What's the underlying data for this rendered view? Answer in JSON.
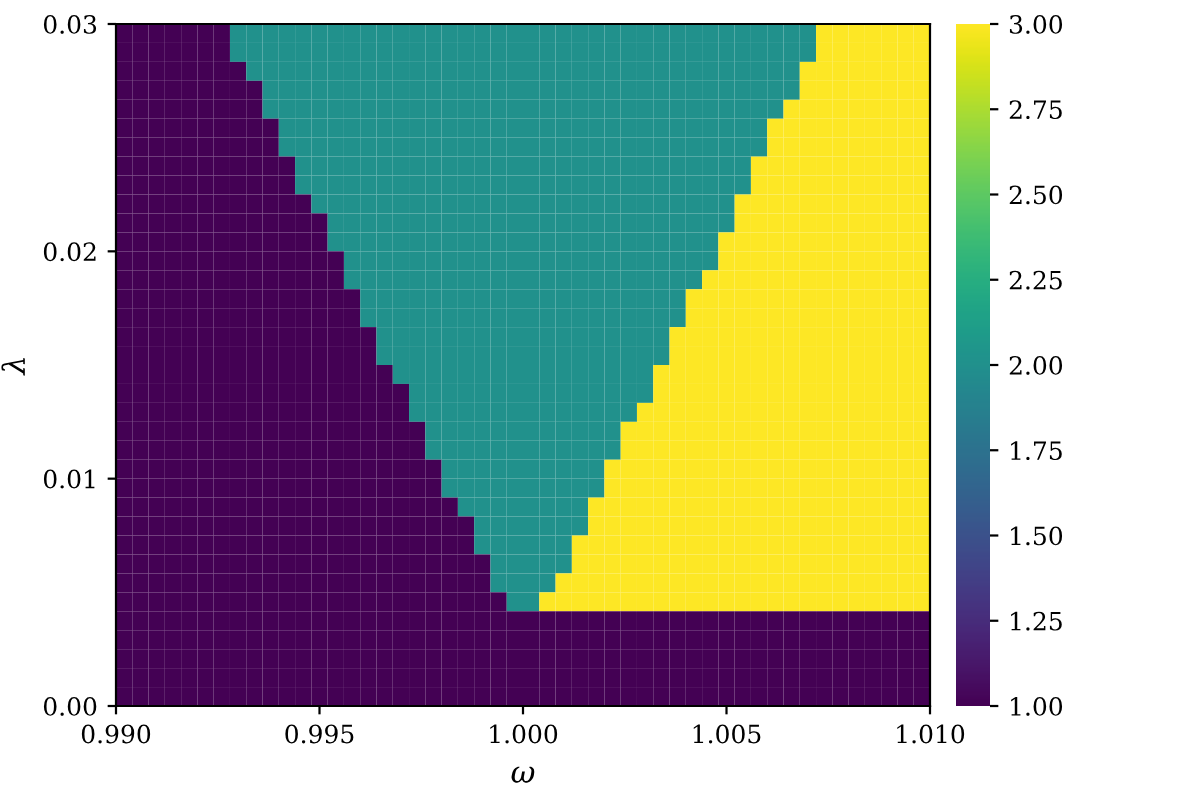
{
  "chart_data": {
    "type": "heatmap",
    "xlabel": "ω",
    "ylabel": "λ",
    "xlim": [
      0.99,
      1.01
    ],
    "ylim": [
      0.0,
      0.03
    ],
    "xticks": [
      {
        "value": 0.99,
        "label": "0.990"
      },
      {
        "value": 0.995,
        "label": "0.995"
      },
      {
        "value": 1.0,
        "label": "1.000"
      },
      {
        "value": 1.005,
        "label": "1.005"
      },
      {
        "value": 1.01,
        "label": "1.010"
      }
    ],
    "yticks": [
      {
        "value": 0.0,
        "label": "0.00"
      },
      {
        "value": 0.01,
        "label": "0.01"
      },
      {
        "value": 0.02,
        "label": "0.02"
      },
      {
        "value": 0.03,
        "label": "0.03"
      }
    ],
    "clim": [
      1,
      3
    ],
    "cticks": [
      {
        "value": 1,
        "label": "1.00"
      },
      {
        "value": 1.25,
        "label": "1.25"
      },
      {
        "value": 1.5,
        "label": "1.50"
      },
      {
        "value": 1.75,
        "label": "1.75"
      },
      {
        "value": 2,
        "label": "2.00"
      },
      {
        "value": 2.25,
        "label": "2.25"
      },
      {
        "value": 2.5,
        "label": "2.50"
      },
      {
        "value": 2.75,
        "label": "2.75"
      },
      {
        "value": 3,
        "label": "3.00"
      }
    ],
    "grid": false,
    "cells": [
      [
        1,
        1,
        1,
        1,
        1,
        1,
        1,
        2,
        2,
        2,
        2,
        2,
        2,
        2,
        2,
        2,
        2,
        2,
        2,
        2,
        2,
        2,
        2,
        2,
        2,
        2,
        2,
        2,
        2,
        2,
        2,
        2,
        2,
        2,
        2,
        2,
        2,
        2,
        2,
        2,
        2,
        2,
        2,
        3,
        3,
        3,
        3,
        3,
        3,
        3
      ],
      [
        1,
        1,
        1,
        1,
        1,
        1,
        1,
        2,
        2,
        2,
        2,
        2,
        2,
        2,
        2,
        2,
        2,
        2,
        2,
        2,
        2,
        2,
        2,
        2,
        2,
        2,
        2,
        2,
        2,
        2,
        2,
        2,
        2,
        2,
        2,
        2,
        2,
        2,
        2,
        2,
        2,
        2,
        2,
        3,
        3,
        3,
        3,
        3,
        3,
        3
      ],
      [
        1,
        1,
        1,
        1,
        1,
        1,
        1,
        1,
        2,
        2,
        2,
        2,
        2,
        2,
        2,
        2,
        2,
        2,
        2,
        2,
        2,
        2,
        2,
        2,
        2,
        2,
        2,
        2,
        2,
        2,
        2,
        2,
        2,
        2,
        2,
        2,
        2,
        2,
        2,
        2,
        2,
        2,
        3,
        3,
        3,
        3,
        3,
        3,
        3,
        3
      ],
      [
        1,
        1,
        1,
        1,
        1,
        1,
        1,
        1,
        1,
        2,
        2,
        2,
        2,
        2,
        2,
        2,
        2,
        2,
        2,
        2,
        2,
        2,
        2,
        2,
        2,
        2,
        2,
        2,
        2,
        2,
        2,
        2,
        2,
        2,
        2,
        2,
        2,
        2,
        2,
        2,
        2,
        2,
        3,
        3,
        3,
        3,
        3,
        3,
        3,
        3
      ],
      [
        1,
        1,
        1,
        1,
        1,
        1,
        1,
        1,
        1,
        2,
        2,
        2,
        2,
        2,
        2,
        2,
        2,
        2,
        2,
        2,
        2,
        2,
        2,
        2,
        2,
        2,
        2,
        2,
        2,
        2,
        2,
        2,
        2,
        2,
        2,
        2,
        2,
        2,
        2,
        2,
        2,
        3,
        3,
        3,
        3,
        3,
        3,
        3,
        3,
        3
      ],
      [
        1,
        1,
        1,
        1,
        1,
        1,
        1,
        1,
        1,
        1,
        2,
        2,
        2,
        2,
        2,
        2,
        2,
        2,
        2,
        2,
        2,
        2,
        2,
        2,
        2,
        2,
        2,
        2,
        2,
        2,
        2,
        2,
        2,
        2,
        2,
        2,
        2,
        2,
        2,
        2,
        3,
        3,
        3,
        3,
        3,
        3,
        3,
        3,
        3,
        3
      ],
      [
        1,
        1,
        1,
        1,
        1,
        1,
        1,
        1,
        1,
        1,
        2,
        2,
        2,
        2,
        2,
        2,
        2,
        2,
        2,
        2,
        2,
        2,
        2,
        2,
        2,
        2,
        2,
        2,
        2,
        2,
        2,
        2,
        2,
        2,
        2,
        2,
        2,
        2,
        2,
        2,
        3,
        3,
        3,
        3,
        3,
        3,
        3,
        3,
        3,
        3
      ],
      [
        1,
        1,
        1,
        1,
        1,
        1,
        1,
        1,
        1,
        1,
        1,
        2,
        2,
        2,
        2,
        2,
        2,
        2,
        2,
        2,
        2,
        2,
        2,
        2,
        2,
        2,
        2,
        2,
        2,
        2,
        2,
        2,
        2,
        2,
        2,
        2,
        2,
        2,
        2,
        3,
        3,
        3,
        3,
        3,
        3,
        3,
        3,
        3,
        3,
        3
      ],
      [
        1,
        1,
        1,
        1,
        1,
        1,
        1,
        1,
        1,
        1,
        1,
        2,
        2,
        2,
        2,
        2,
        2,
        2,
        2,
        2,
        2,
        2,
        2,
        2,
        2,
        2,
        2,
        2,
        2,
        2,
        2,
        2,
        2,
        2,
        2,
        2,
        2,
        2,
        2,
        3,
        3,
        3,
        3,
        3,
        3,
        3,
        3,
        3,
        3,
        3
      ],
      [
        1,
        1,
        1,
        1,
        1,
        1,
        1,
        1,
        1,
        1,
        1,
        1,
        2,
        2,
        2,
        2,
        2,
        2,
        2,
        2,
        2,
        2,
        2,
        2,
        2,
        2,
        2,
        2,
        2,
        2,
        2,
        2,
        2,
        2,
        2,
        2,
        2,
        2,
        3,
        3,
        3,
        3,
        3,
        3,
        3,
        3,
        3,
        3,
        3,
        3
      ],
      [
        1,
        1,
        1,
        1,
        1,
        1,
        1,
        1,
        1,
        1,
        1,
        1,
        1,
        2,
        2,
        2,
        2,
        2,
        2,
        2,
        2,
        2,
        2,
        2,
        2,
        2,
        2,
        2,
        2,
        2,
        2,
        2,
        2,
        2,
        2,
        2,
        2,
        2,
        3,
        3,
        3,
        3,
        3,
        3,
        3,
        3,
        3,
        3,
        3,
        3
      ],
      [
        1,
        1,
        1,
        1,
        1,
        1,
        1,
        1,
        1,
        1,
        1,
        1,
        1,
        2,
        2,
        2,
        2,
        2,
        2,
        2,
        2,
        2,
        2,
        2,
        2,
        2,
        2,
        2,
        2,
        2,
        2,
        2,
        2,
        2,
        2,
        2,
        2,
        3,
        3,
        3,
        3,
        3,
        3,
        3,
        3,
        3,
        3,
        3,
        3,
        3
      ],
      [
        1,
        1,
        1,
        1,
        1,
        1,
        1,
        1,
        1,
        1,
        1,
        1,
        1,
        1,
        2,
        2,
        2,
        2,
        2,
        2,
        2,
        2,
        2,
        2,
        2,
        2,
        2,
        2,
        2,
        2,
        2,
        2,
        2,
        2,
        2,
        2,
        2,
        3,
        3,
        3,
        3,
        3,
        3,
        3,
        3,
        3,
        3,
        3,
        3,
        3
      ],
      [
        1,
        1,
        1,
        1,
        1,
        1,
        1,
        1,
        1,
        1,
        1,
        1,
        1,
        1,
        2,
        2,
        2,
        2,
        2,
        2,
        2,
        2,
        2,
        2,
        2,
        2,
        2,
        2,
        2,
        2,
        2,
        2,
        2,
        2,
        2,
        2,
        3,
        3,
        3,
        3,
        3,
        3,
        3,
        3,
        3,
        3,
        3,
        3,
        3,
        3
      ],
      [
        1,
        1,
        1,
        1,
        1,
        1,
        1,
        1,
        1,
        1,
        1,
        1,
        1,
        1,
        1,
        2,
        2,
        2,
        2,
        2,
        2,
        2,
        2,
        2,
        2,
        2,
        2,
        2,
        2,
        2,
        2,
        2,
        2,
        2,
        2,
        3,
        3,
        3,
        3,
        3,
        3,
        3,
        3,
        3,
        3,
        3,
        3,
        3,
        3,
        3
      ],
      [
        1,
        1,
        1,
        1,
        1,
        1,
        1,
        1,
        1,
        1,
        1,
        1,
        1,
        1,
        1,
        2,
        2,
        2,
        2,
        2,
        2,
        2,
        2,
        2,
        2,
        2,
        2,
        2,
        2,
        2,
        2,
        2,
        2,
        2,
        2,
        3,
        3,
        3,
        3,
        3,
        3,
        3,
        3,
        3,
        3,
        3,
        3,
        3,
        3,
        3
      ],
      [
        1,
        1,
        1,
        1,
        1,
        1,
        1,
        1,
        1,
        1,
        1,
        1,
        1,
        1,
        1,
        1,
        2,
        2,
        2,
        2,
        2,
        2,
        2,
        2,
        2,
        2,
        2,
        2,
        2,
        2,
        2,
        2,
        2,
        2,
        3,
        3,
        3,
        3,
        3,
        3,
        3,
        3,
        3,
        3,
        3,
        3,
        3,
        3,
        3,
        3
      ],
      [
        1,
        1,
        1,
        1,
        1,
        1,
        1,
        1,
        1,
        1,
        1,
        1,
        1,
        1,
        1,
        1,
        2,
        2,
        2,
        2,
        2,
        2,
        2,
        2,
        2,
        2,
        2,
        2,
        2,
        2,
        2,
        2,
        2,
        2,
        3,
        3,
        3,
        3,
        3,
        3,
        3,
        3,
        3,
        3,
        3,
        3,
        3,
        3,
        3,
        3
      ],
      [
        1,
        1,
        1,
        1,
        1,
        1,
        1,
        1,
        1,
        1,
        1,
        1,
        1,
        1,
        1,
        1,
        1,
        2,
        2,
        2,
        2,
        2,
        2,
        2,
        2,
        2,
        2,
        2,
        2,
        2,
        2,
        2,
        2,
        3,
        3,
        3,
        3,
        3,
        3,
        3,
        3,
        3,
        3,
        3,
        3,
        3,
        3,
        3,
        3,
        3
      ],
      [
        1,
        1,
        1,
        1,
        1,
        1,
        1,
        1,
        1,
        1,
        1,
        1,
        1,
        1,
        1,
        1,
        1,
        1,
        2,
        2,
        2,
        2,
        2,
        2,
        2,
        2,
        2,
        2,
        2,
        2,
        2,
        2,
        2,
        3,
        3,
        3,
        3,
        3,
        3,
        3,
        3,
        3,
        3,
        3,
        3,
        3,
        3,
        3,
        3,
        3
      ],
      [
        1,
        1,
        1,
        1,
        1,
        1,
        1,
        1,
        1,
        1,
        1,
        1,
        1,
        1,
        1,
        1,
        1,
        1,
        2,
        2,
        2,
        2,
        2,
        2,
        2,
        2,
        2,
        2,
        2,
        2,
        2,
        2,
        3,
        3,
        3,
        3,
        3,
        3,
        3,
        3,
        3,
        3,
        3,
        3,
        3,
        3,
        3,
        3,
        3,
        3
      ],
      [
        1,
        1,
        1,
        1,
        1,
        1,
        1,
        1,
        1,
        1,
        1,
        1,
        1,
        1,
        1,
        1,
        1,
        1,
        1,
        2,
        2,
        2,
        2,
        2,
        2,
        2,
        2,
        2,
        2,
        2,
        2,
        3,
        3,
        3,
        3,
        3,
        3,
        3,
        3,
        3,
        3,
        3,
        3,
        3,
        3,
        3,
        3,
        3,
        3,
        3
      ],
      [
        1,
        1,
        1,
        1,
        1,
        1,
        1,
        1,
        1,
        1,
        1,
        1,
        1,
        1,
        1,
        1,
        1,
        1,
        1,
        2,
        2,
        2,
        2,
        2,
        2,
        2,
        2,
        2,
        2,
        2,
        2,
        3,
        3,
        3,
        3,
        3,
        3,
        3,
        3,
        3,
        3,
        3,
        3,
        3,
        3,
        3,
        3,
        3,
        3,
        3
      ],
      [
        1,
        1,
        1,
        1,
        1,
        1,
        1,
        1,
        1,
        1,
        1,
        1,
        1,
        1,
        1,
        1,
        1,
        1,
        1,
        1,
        2,
        2,
        2,
        2,
        2,
        2,
        2,
        2,
        2,
        2,
        3,
        3,
        3,
        3,
        3,
        3,
        3,
        3,
        3,
        3,
        3,
        3,
        3,
        3,
        3,
        3,
        3,
        3,
        3,
        3
      ],
      [
        1,
        1,
        1,
        1,
        1,
        1,
        1,
        1,
        1,
        1,
        1,
        1,
        1,
        1,
        1,
        1,
        1,
        1,
        1,
        1,
        2,
        2,
        2,
        2,
        2,
        2,
        2,
        2,
        2,
        2,
        3,
        3,
        3,
        3,
        3,
        3,
        3,
        3,
        3,
        3,
        3,
        3,
        3,
        3,
        3,
        3,
        3,
        3,
        3,
        3
      ],
      [
        1,
        1,
        1,
        1,
        1,
        1,
        1,
        1,
        1,
        1,
        1,
        1,
        1,
        1,
        1,
        1,
        1,
        1,
        1,
        1,
        1,
        2,
        2,
        2,
        2,
        2,
        2,
        2,
        2,
        3,
        3,
        3,
        3,
        3,
        3,
        3,
        3,
        3,
        3,
        3,
        3,
        3,
        3,
        3,
        3,
        3,
        3,
        3,
        3,
        3
      ],
      [
        1,
        1,
        1,
        1,
        1,
        1,
        1,
        1,
        1,
        1,
        1,
        1,
        1,
        1,
        1,
        1,
        1,
        1,
        1,
        1,
        1,
        1,
        2,
        2,
        2,
        2,
        2,
        2,
        2,
        3,
        3,
        3,
        3,
        3,
        3,
        3,
        3,
        3,
        3,
        3,
        3,
        3,
        3,
        3,
        3,
        3,
        3,
        3,
        3,
        3
      ],
      [
        1,
        1,
        1,
        1,
        1,
        1,
        1,
        1,
        1,
        1,
        1,
        1,
        1,
        1,
        1,
        1,
        1,
        1,
        1,
        1,
        1,
        1,
        2,
        2,
        2,
        2,
        2,
        2,
        3,
        3,
        3,
        3,
        3,
        3,
        3,
        3,
        3,
        3,
        3,
        3,
        3,
        3,
        3,
        3,
        3,
        3,
        3,
        3,
        3,
        3
      ],
      [
        1,
        1,
        1,
        1,
        1,
        1,
        1,
        1,
        1,
        1,
        1,
        1,
        1,
        1,
        1,
        1,
        1,
        1,
        1,
        1,
        1,
        1,
        1,
        2,
        2,
        2,
        2,
        2,
        3,
        3,
        3,
        3,
        3,
        3,
        3,
        3,
        3,
        3,
        3,
        3,
        3,
        3,
        3,
        3,
        3,
        3,
        3,
        3,
        3,
        3
      ],
      [
        1,
        1,
        1,
        1,
        1,
        1,
        1,
        1,
        1,
        1,
        1,
        1,
        1,
        1,
        1,
        1,
        1,
        1,
        1,
        1,
        1,
        1,
        1,
        2,
        2,
        2,
        2,
        3,
        3,
        3,
        3,
        3,
        3,
        3,
        3,
        3,
        3,
        3,
        3,
        3,
        3,
        3,
        3,
        3,
        3,
        3,
        3,
        3,
        3,
        3
      ],
      [
        1,
        1,
        1,
        1,
        1,
        1,
        1,
        1,
        1,
        1,
        1,
        1,
        1,
        1,
        1,
        1,
        1,
        1,
        1,
        1,
        1,
        1,
        1,
        1,
        2,
        2,
        3,
        3,
        3,
        3,
        3,
        3,
        3,
        3,
        3,
        3,
        3,
        3,
        3,
        3,
        3,
        3,
        3,
        3,
        3,
        3,
        3,
        3,
        3,
        3
      ],
      [
        1,
        1,
        1,
        1,
        1,
        1,
        1,
        1,
        1,
        1,
        1,
        1,
        1,
        1,
        1,
        1,
        1,
        1,
        1,
        1,
        1,
        1,
        1,
        1,
        1,
        1,
        1,
        1,
        1,
        1,
        1,
        1,
        1,
        1,
        1,
        1,
        1,
        1,
        1,
        1,
        1,
        1,
        1,
        1,
        1,
        1,
        1,
        1,
        1,
        1
      ],
      [
        1,
        1,
        1,
        1,
        1,
        1,
        1,
        1,
        1,
        1,
        1,
        1,
        1,
        1,
        1,
        1,
        1,
        1,
        1,
        1,
        1,
        1,
        1,
        1,
        1,
        1,
        1,
        1,
        1,
        1,
        1,
        1,
        1,
        1,
        1,
        1,
        1,
        1,
        1,
        1,
        1,
        1,
        1,
        1,
        1,
        1,
        1,
        1,
        1,
        1
      ],
      [
        1,
        1,
        1,
        1,
        1,
        1,
        1,
        1,
        1,
        1,
        1,
        1,
        1,
        1,
        1,
        1,
        1,
        1,
        1,
        1,
        1,
        1,
        1,
        1,
        1,
        1,
        1,
        1,
        1,
        1,
        1,
        1,
        1,
        1,
        1,
        1,
        1,
        1,
        1,
        1,
        1,
        1,
        1,
        1,
        1,
        1,
        1,
        1,
        1,
        1
      ],
      [
        1,
        1,
        1,
        1,
        1,
        1,
        1,
        1,
        1,
        1,
        1,
        1,
        1,
        1,
        1,
        1,
        1,
        1,
        1,
        1,
        1,
        1,
        1,
        1,
        1,
        1,
        1,
        1,
        1,
        1,
        1,
        1,
        1,
        1,
        1,
        1,
        1,
        1,
        1,
        1,
        1,
        1,
        1,
        1,
        1,
        1,
        1,
        1,
        1,
        1
      ],
      [
        1,
        1,
        1,
        1,
        1,
        1,
        1,
        1,
        1,
        1,
        1,
        1,
        1,
        1,
        1,
        1,
        1,
        1,
        1,
        1,
        1,
        1,
        1,
        1,
        1,
        1,
        1,
        1,
        1,
        1,
        1,
        1,
        1,
        1,
        1,
        1,
        1,
        1,
        1,
        1,
        1,
        1,
        1,
        1,
        1,
        1,
        1,
        1,
        1,
        1
      ]
    ]
  }
}
